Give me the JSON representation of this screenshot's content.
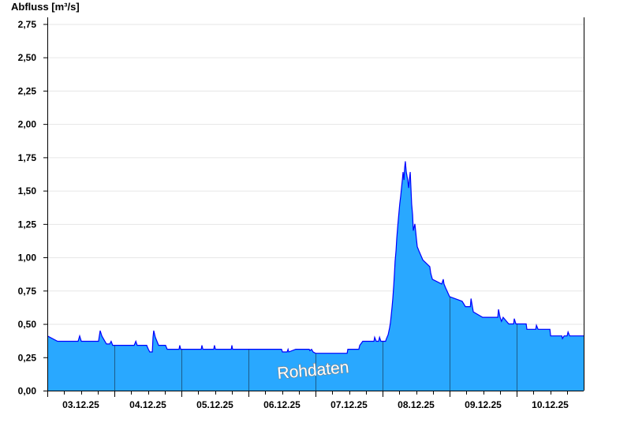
{
  "chart_data": {
    "type": "area",
    "ylabel": "Abfluss [m³/s]",
    "ylim": [
      0,
      2.8
    ],
    "xlim": [
      "2025-12-03T00:00",
      "2025-12-11T00:00"
    ],
    "yticks": [
      "0,00",
      "0,25",
      "0,50",
      "0,75",
      "1,00",
      "1,25",
      "1,50",
      "1,75",
      "2,00",
      "2,25",
      "2,50",
      "2,75"
    ],
    "ytick_values": [
      0,
      0.25,
      0.5,
      0.75,
      1,
      1.25,
      1.5,
      1.75,
      2,
      2.25,
      2.5,
      2.75
    ],
    "xticks": [
      "03.12.25",
      "04.12.25",
      "05.12.25",
      "06.12.25",
      "07.12.25",
      "08.12.25",
      "09.12.25",
      "10.12.25"
    ],
    "grid": true,
    "watermark": "Rohdaten",
    "colors": {
      "fill": "#29a8ff",
      "line": "#0000ff",
      "grid": "#e6e6e6",
      "day_separator": "#1d5c8a"
    },
    "series": [
      {
        "points": [
          [
            "2025-12-03T00:00",
            0.41
          ],
          [
            "2025-12-03T03:40",
            0.37
          ],
          [
            "2025-12-03T11:00",
            0.37
          ],
          [
            "2025-12-03T11:35",
            0.41
          ],
          [
            "2025-12-03T12:10",
            0.37
          ],
          [
            "2025-12-03T18:20",
            0.37
          ],
          [
            "2025-12-03T18:55",
            0.45
          ],
          [
            "2025-12-03T19:30",
            0.41
          ],
          [
            "2025-12-03T20:20",
            0.38
          ],
          [
            "2025-12-03T21:10",
            0.35
          ],
          [
            "2025-12-03T22:20",
            0.35
          ],
          [
            "2025-12-03T22:50",
            0.37
          ],
          [
            "2025-12-03T23:25",
            0.34
          ],
          [
            "2025-12-04T07:05",
            0.34
          ],
          [
            "2025-12-04T07:40",
            0.37
          ],
          [
            "2025-12-04T08:10",
            0.34
          ],
          [
            "2025-12-04T11:35",
            0.34
          ],
          [
            "2025-12-04T12:10",
            0.31
          ],
          [
            "2025-12-04T12:40",
            0.29
          ],
          [
            "2025-12-04T13:35",
            0.29
          ],
          [
            "2025-12-04T13:50",
            0.4
          ],
          [
            "2025-12-04T14:05",
            0.45
          ],
          [
            "2025-12-04T14:40",
            0.4
          ],
          [
            "2025-12-04T15:15",
            0.37
          ],
          [
            "2025-12-04T15:50",
            0.34
          ],
          [
            "2025-12-04T18:20",
            0.34
          ],
          [
            "2025-12-04T18:55",
            0.31
          ],
          [
            "2025-12-04T23:10",
            0.31
          ],
          [
            "2025-12-04T23:25",
            0.34
          ],
          [
            "2025-12-04T23:45",
            0.31
          ],
          [
            "2025-12-05T07:05",
            0.31
          ],
          [
            "2025-12-05T07:20",
            0.34
          ],
          [
            "2025-12-05T07:40",
            0.31
          ],
          [
            "2025-12-05T11:35",
            0.31
          ],
          [
            "2025-12-05T11:50",
            0.34
          ],
          [
            "2025-12-05T12:10",
            0.31
          ],
          [
            "2025-12-05T17:50",
            0.31
          ],
          [
            "2025-12-05T18:05",
            0.34
          ],
          [
            "2025-12-05T18:20",
            0.31
          ],
          [
            "2025-12-06T11:50",
            0.31
          ],
          [
            "2025-12-06T12:10",
            0.29
          ],
          [
            "2025-12-06T13:50",
            0.29
          ],
          [
            "2025-12-06T14:10",
            0.31
          ],
          [
            "2025-12-06T14:25",
            0.29
          ],
          [
            "2025-12-06T16:55",
            0.31
          ],
          [
            "2025-12-06T21:45",
            0.31
          ],
          [
            "2025-12-06T22:00",
            0.3
          ],
          [
            "2025-12-06T22:35",
            0.31
          ],
          [
            "2025-12-06T23:10",
            0.29
          ],
          [
            "2025-12-07T00:00",
            0.28
          ],
          [
            "2025-12-07T11:20",
            0.28
          ],
          [
            "2025-12-07T11:35",
            0.31
          ],
          [
            "2025-12-07T15:30",
            0.31
          ],
          [
            "2025-12-07T15:50",
            0.34
          ],
          [
            "2025-12-07T16:55",
            0.37
          ],
          [
            "2025-12-07T20:55",
            0.37
          ],
          [
            "2025-12-07T21:10",
            0.4
          ],
          [
            "2025-12-07T21:45",
            0.37
          ],
          [
            "2025-12-07T22:35",
            0.37
          ],
          [
            "2025-12-07T22:55",
            0.4
          ],
          [
            "2025-12-07T23:25",
            0.37
          ],
          [
            "2025-12-08T01:05",
            0.37
          ],
          [
            "2025-12-08T01:25",
            0.39
          ],
          [
            "2025-12-08T02:00",
            0.42
          ],
          [
            "2025-12-08T02:30",
            0.47
          ],
          [
            "2025-12-08T02:50",
            0.51
          ],
          [
            "2025-12-08T03:05",
            0.56
          ],
          [
            "2025-12-08T03:25",
            0.63
          ],
          [
            "2025-12-08T03:40",
            0.69
          ],
          [
            "2025-12-08T04:00",
            0.79
          ],
          [
            "2025-12-08T04:15",
            0.88
          ],
          [
            "2025-12-08T04:30",
            0.97
          ],
          [
            "2025-12-08T04:50",
            1.05
          ],
          [
            "2025-12-08T05:05",
            1.14
          ],
          [
            "2025-12-08T05:25",
            1.23
          ],
          [
            "2025-12-08T05:40",
            1.29
          ],
          [
            "2025-12-08T06:10",
            1.4
          ],
          [
            "2025-12-08T06:30",
            1.46
          ],
          [
            "2025-12-08T06:50",
            1.53
          ],
          [
            "2025-12-08T07:05",
            1.58
          ],
          [
            "2025-12-08T07:20",
            1.64
          ],
          [
            "2025-12-08T07:40",
            1.58
          ],
          [
            "2025-12-08T07:55",
            1.67
          ],
          [
            "2025-12-08T08:10",
            1.72
          ],
          [
            "2025-12-08T08:30",
            1.64
          ],
          [
            "2025-12-08T09:00",
            1.58
          ],
          [
            "2025-12-08T09:20",
            1.52
          ],
          [
            "2025-12-08T09:35",
            1.58
          ],
          [
            "2025-12-08T09:55",
            1.64
          ],
          [
            "2025-12-08T10:10",
            1.52
          ],
          [
            "2025-12-08T10:25",
            1.4
          ],
          [
            "2025-12-08T10:45",
            1.32
          ],
          [
            "2025-12-08T11:00",
            1.2
          ],
          [
            "2025-12-08T11:35",
            1.25
          ],
          [
            "2025-12-08T11:50",
            1.2
          ],
          [
            "2025-12-08T12:10",
            1.13
          ],
          [
            "2025-12-08T12:25",
            1.08
          ],
          [
            "2025-12-08T13:00",
            1.05
          ],
          [
            "2025-12-08T14:25",
            0.98
          ],
          [
            "2025-12-08T16:55",
            0.93
          ],
          [
            "2025-12-08T17:15",
            0.88
          ],
          [
            "2025-12-08T17:50",
            0.835
          ],
          [
            "2025-12-08T21:10",
            0.8
          ],
          [
            "2025-12-08T21:45",
            0.835
          ],
          [
            "2025-12-08T22:00",
            0.8
          ],
          [
            "2025-12-08T22:35",
            0.77
          ],
          [
            "2025-12-09T00:00",
            0.705
          ],
          [
            "2025-12-09T04:30",
            0.67
          ],
          [
            "2025-12-09T05:40",
            0.63
          ],
          [
            "2025-12-09T07:25",
            0.63
          ],
          [
            "2025-12-09T07:40",
            0.69
          ],
          [
            "2025-12-09T08:10",
            0.63
          ],
          [
            "2025-12-09T08:30",
            0.59
          ],
          [
            "2025-12-09T11:50",
            0.55
          ],
          [
            "2025-12-09T17:15",
            0.55
          ],
          [
            "2025-12-09T17:30",
            0.61
          ],
          [
            "2025-12-09T18:05",
            0.55
          ],
          [
            "2025-12-09T18:35",
            0.52
          ],
          [
            "2025-12-09T19:10",
            0.55
          ],
          [
            "2025-12-09T21:10",
            0.5
          ],
          [
            "2025-12-09T22:55",
            0.5
          ],
          [
            "2025-12-09T23:10",
            0.54
          ],
          [
            "2025-12-09T23:45",
            0.5
          ],
          [
            "2025-12-10T03:25",
            0.5
          ],
          [
            "2025-12-10T03:40",
            0.46
          ],
          [
            "2025-12-10T06:50",
            0.46
          ],
          [
            "2025-12-10T07:05",
            0.49
          ],
          [
            "2025-12-10T07:40",
            0.46
          ],
          [
            "2025-12-10T11:55",
            0.46
          ],
          [
            "2025-12-10T12:10",
            0.41
          ],
          [
            "2025-12-10T16:10",
            0.41
          ],
          [
            "2025-12-10T16:25",
            0.39
          ],
          [
            "2025-12-10T17:00",
            0.41
          ],
          [
            "2025-12-10T18:05",
            0.41
          ],
          [
            "2025-12-10T18:25",
            0.44
          ],
          [
            "2025-12-10T19:00",
            0.41
          ],
          [
            "2025-12-11T00:00",
            0.41
          ]
        ]
      }
    ]
  }
}
